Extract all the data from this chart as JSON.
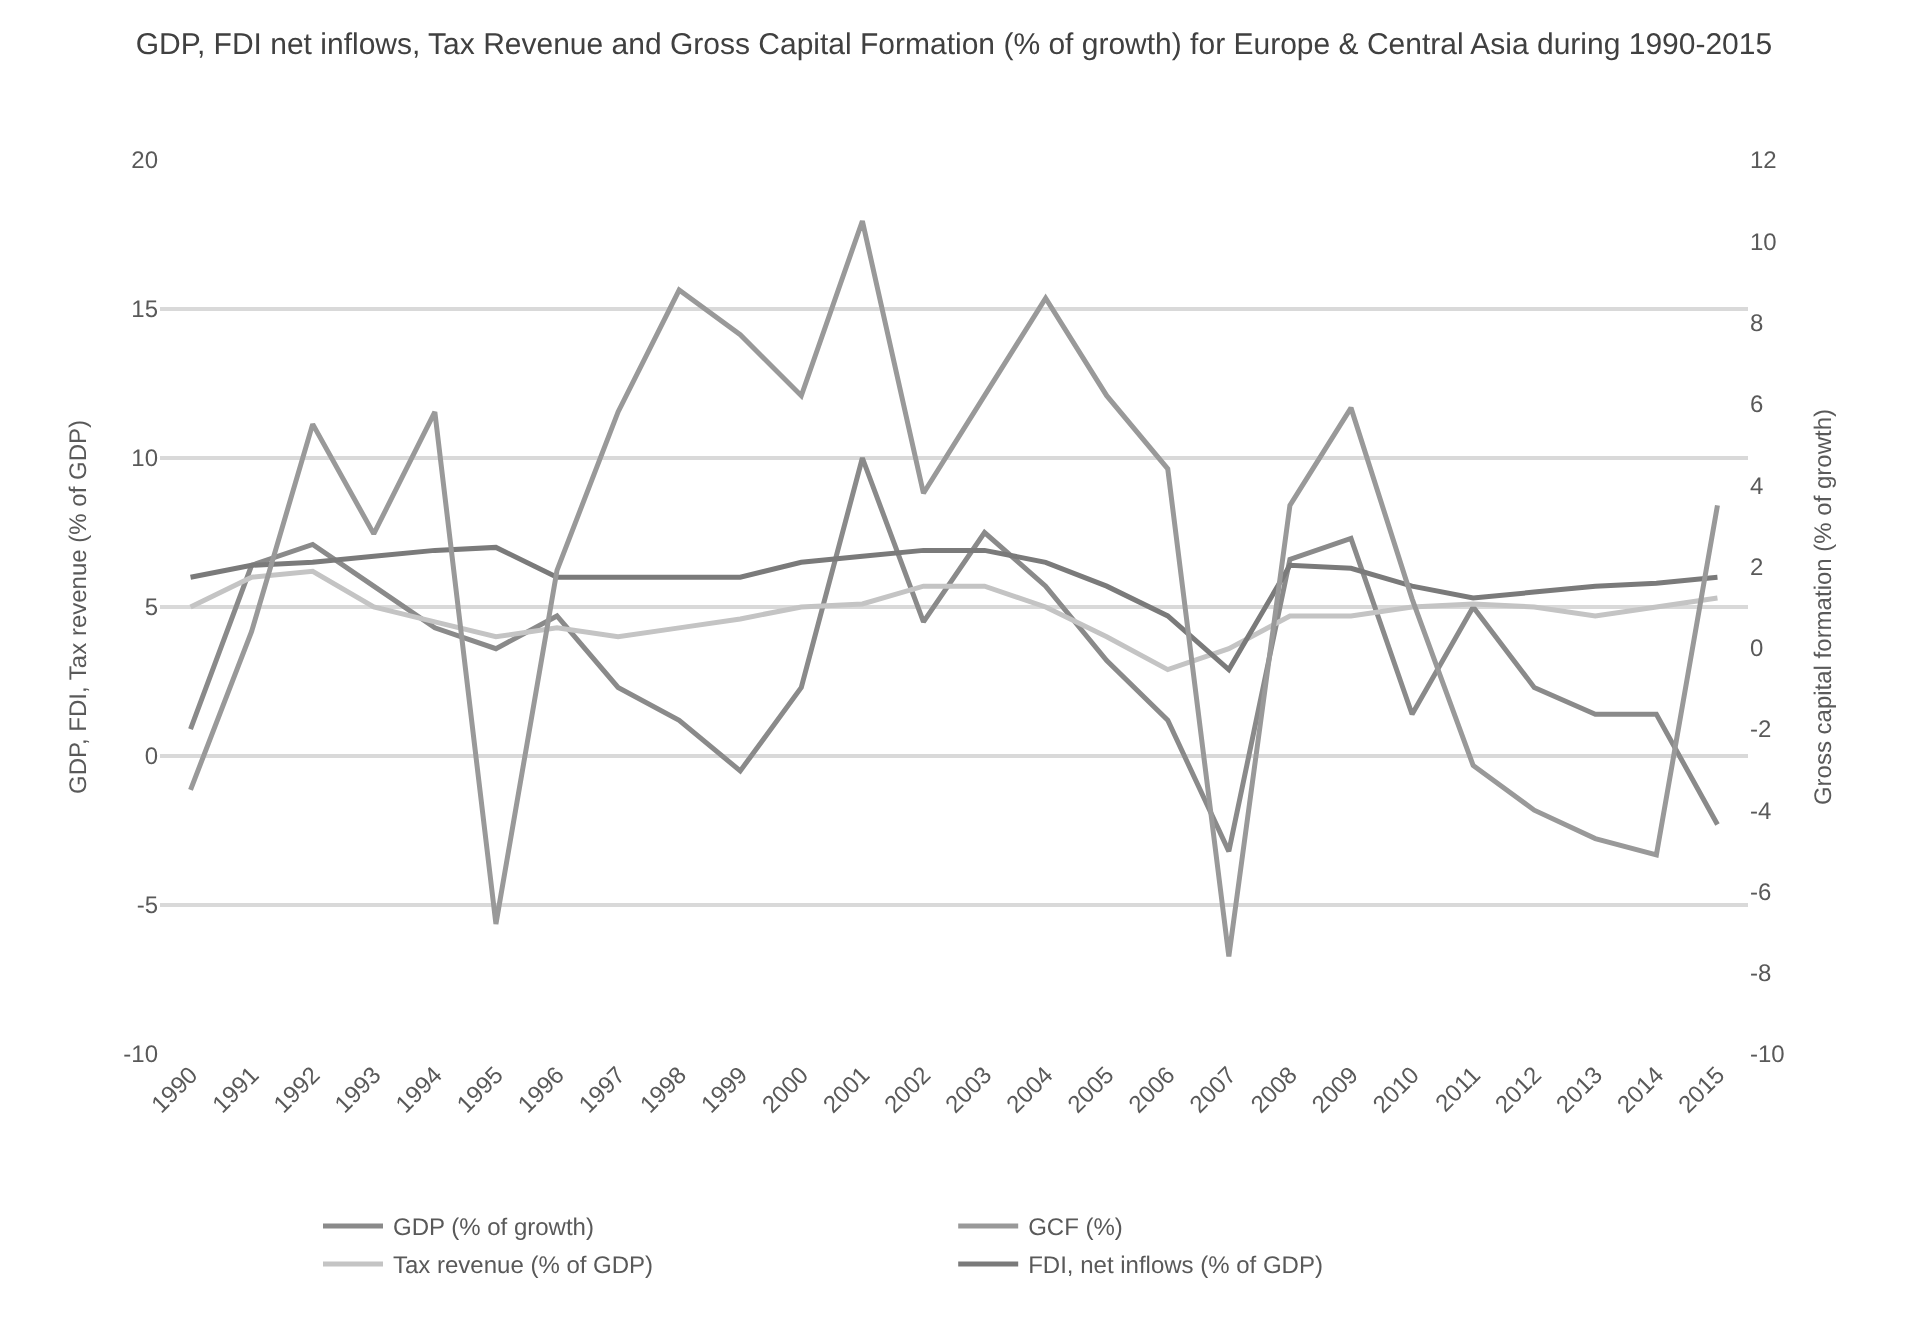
{
  "chart_data": {
    "type": "line",
    "title": "GDP, FDI net inflows, Tax Revenue and Gross Capital Formation (% of growth) for Europe & Central Asia during 1990-2015",
    "ylabel": "GDP, FDI, Tax revenue (% of GDP)",
    "y2label": "Gross capital formation (% of growth)",
    "categories": [
      "1990",
      "1991",
      "1992",
      "1993",
      "1994",
      "1995",
      "1996",
      "1997",
      "1998",
      "1999",
      "2000",
      "2001",
      "2002",
      "2003",
      "2004",
      "2005",
      "2006",
      "2007",
      "2008",
      "2009",
      "2010",
      "2011",
      "2012",
      "2013",
      "2014",
      "2015"
    ],
    "series": [
      {
        "name": "GDP (% of growth)",
        "color": "#8a8a8a",
        "values": [
          0.9,
          6.4,
          7.1,
          5.7,
          4.3,
          3.6,
          4.7,
          2.3,
          1.2,
          -0.5,
          2.3,
          10.0,
          4.5,
          7.5,
          5.7,
          3.2,
          1.2,
          -3.2,
          6.6,
          7.3,
          1.4,
          5.0,
          2.3,
          1.4,
          1.4,
          -2.3
        ]
      },
      {
        "name": "GCF (%)",
        "color": "#999999",
        "axis": "y2",
        "values": [
          -3.5,
          0.4,
          5.5,
          2.8,
          5.8,
          -6.8,
          1.9,
          5.8,
          8.8,
          7.7,
          6.2,
          10.5,
          3.8,
          6.2,
          8.6,
          6.2,
          4.4,
          -7.6,
          3.5,
          5.9,
          1.2,
          -2.9,
          -4.0,
          -4.7,
          -5.1,
          3.5
        ]
      },
      {
        "name": "Tax revenue (% of GDP)",
        "color": "#c4c4c4",
        "values": [
          5.0,
          6.0,
          6.2,
          5.0,
          4.5,
          4.0,
          4.3,
          4.0,
          4.3,
          4.6,
          5.0,
          5.1,
          5.7,
          5.7,
          5.0,
          4.0,
          2.9,
          3.6,
          4.7,
          4.7,
          5.0,
          5.1,
          5.0,
          4.7,
          5.0,
          5.3
        ]
      },
      {
        "name": "FDI, net inflows (% of GDP)",
        "color": "#7a7a7a",
        "values": [
          6.0,
          6.4,
          6.5,
          6.7,
          6.9,
          7.0,
          6.0,
          6.0,
          6.0,
          6.0,
          6.5,
          6.7,
          6.9,
          6.9,
          6.5,
          5.7,
          4.7,
          2.9,
          6.4,
          6.3,
          5.7,
          5.3,
          5.5,
          5.7,
          5.8,
          6.0
        ]
      }
    ],
    "ylim": [
      -10,
      20
    ],
    "yticks": [
      -10,
      -5,
      0,
      5,
      10,
      15,
      20
    ],
    "y2lim": [
      -10,
      12
    ],
    "y2ticks": [
      -10,
      -8,
      -6,
      -4,
      -2,
      0,
      2,
      4,
      6,
      8,
      10,
      12
    ],
    "grid": "y",
    "legend": "bottom",
    "marker": "none",
    "line_style": "solid"
  }
}
